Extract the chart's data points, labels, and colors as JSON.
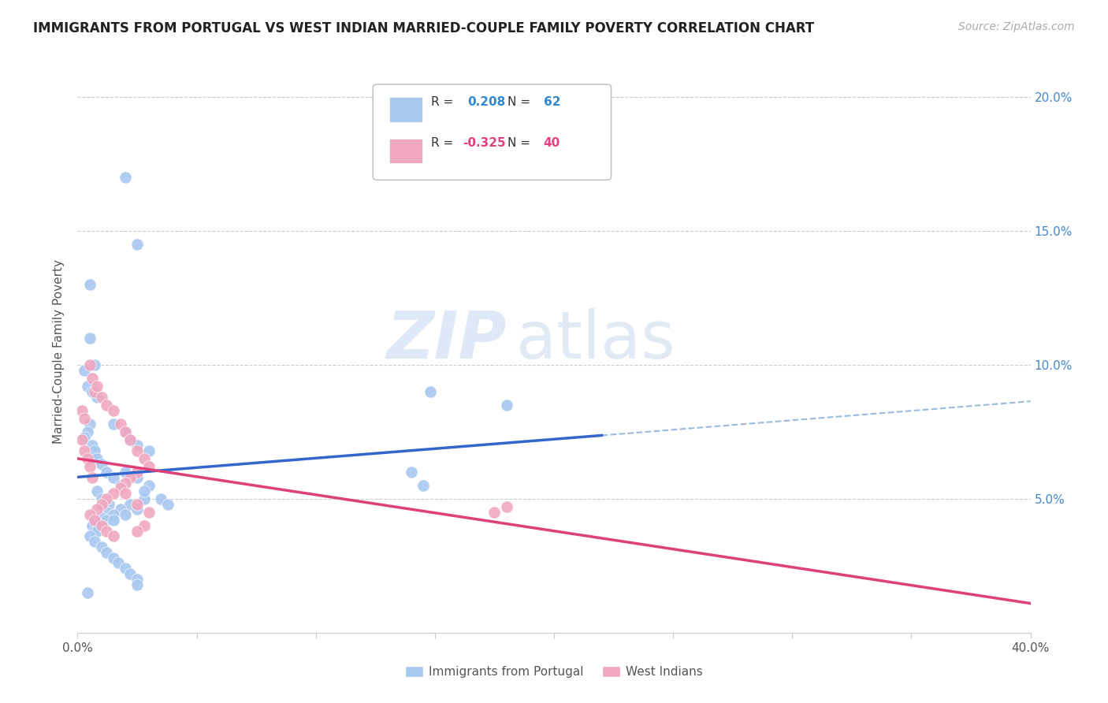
{
  "title": "IMMIGRANTS FROM PORTUGAL VS WEST INDIAN MARRIED-COUPLE FAMILY POVERTY CORRELATION CHART",
  "source": "Source: ZipAtlas.com",
  "ylabel": "Married-Couple Family Poverty",
  "xlim": [
    0.0,
    0.4
  ],
  "ylim": [
    0.0,
    0.21
  ],
  "blue_color": "#a8c8f0",
  "pink_color": "#f0a8c0",
  "blue_line_color": "#3366cc",
  "pink_line_color": "#e0407a",
  "blue_scatter_x": [
    0.02,
    0.025,
    0.005,
    0.005,
    0.007,
    0.003,
    0.004,
    0.006,
    0.008,
    0.005,
    0.004,
    0.003,
    0.006,
    0.007,
    0.008,
    0.01,
    0.012,
    0.015,
    0.018,
    0.008,
    0.01,
    0.013,
    0.012,
    0.01,
    0.006,
    0.007,
    0.015,
    0.02,
    0.022,
    0.025,
    0.03,
    0.028,
    0.022,
    0.018,
    0.015,
    0.012,
    0.02,
    0.025,
    0.03,
    0.028,
    0.035,
    0.038,
    0.025,
    0.02,
    0.015,
    0.01,
    0.008,
    0.005,
    0.007,
    0.01,
    0.012,
    0.015,
    0.017,
    0.02,
    0.022,
    0.025,
    0.14,
    0.145,
    0.18,
    0.148,
    0.025,
    0.004
  ],
  "blue_scatter_y": [
    0.17,
    0.145,
    0.13,
    0.11,
    0.1,
    0.098,
    0.092,
    0.09,
    0.088,
    0.078,
    0.075,
    0.073,
    0.07,
    0.068,
    0.065,
    0.063,
    0.06,
    0.058,
    0.055,
    0.053,
    0.05,
    0.048,
    0.045,
    0.043,
    0.04,
    0.038,
    0.078,
    0.075,
    0.072,
    0.07,
    0.068,
    0.05,
    0.048,
    0.046,
    0.044,
    0.042,
    0.06,
    0.058,
    0.055,
    0.053,
    0.05,
    0.048,
    0.046,
    0.044,
    0.042,
    0.04,
    0.038,
    0.036,
    0.034,
    0.032,
    0.03,
    0.028,
    0.026,
    0.024,
    0.022,
    0.02,
    0.06,
    0.055,
    0.085,
    0.09,
    0.018,
    0.015
  ],
  "pink_scatter_x": [
    0.002,
    0.003,
    0.005,
    0.006,
    0.007,
    0.008,
    0.01,
    0.012,
    0.015,
    0.018,
    0.02,
    0.022,
    0.025,
    0.028,
    0.03,
    0.025,
    0.022,
    0.02,
    0.018,
    0.015,
    0.012,
    0.01,
    0.008,
    0.005,
    0.007,
    0.01,
    0.012,
    0.015,
    0.02,
    0.025,
    0.03,
    0.028,
    0.025,
    0.175,
    0.18,
    0.002,
    0.003,
    0.004,
    0.005,
    0.006
  ],
  "pink_scatter_y": [
    0.083,
    0.08,
    0.1,
    0.095,
    0.09,
    0.092,
    0.088,
    0.085,
    0.083,
    0.078,
    0.075,
    0.072,
    0.068,
    0.065,
    0.062,
    0.06,
    0.058,
    0.056,
    0.054,
    0.052,
    0.05,
    0.048,
    0.046,
    0.044,
    0.042,
    0.04,
    0.038,
    0.036,
    0.052,
    0.048,
    0.045,
    0.04,
    0.038,
    0.045,
    0.047,
    0.072,
    0.068,
    0.065,
    0.062,
    0.058
  ]
}
